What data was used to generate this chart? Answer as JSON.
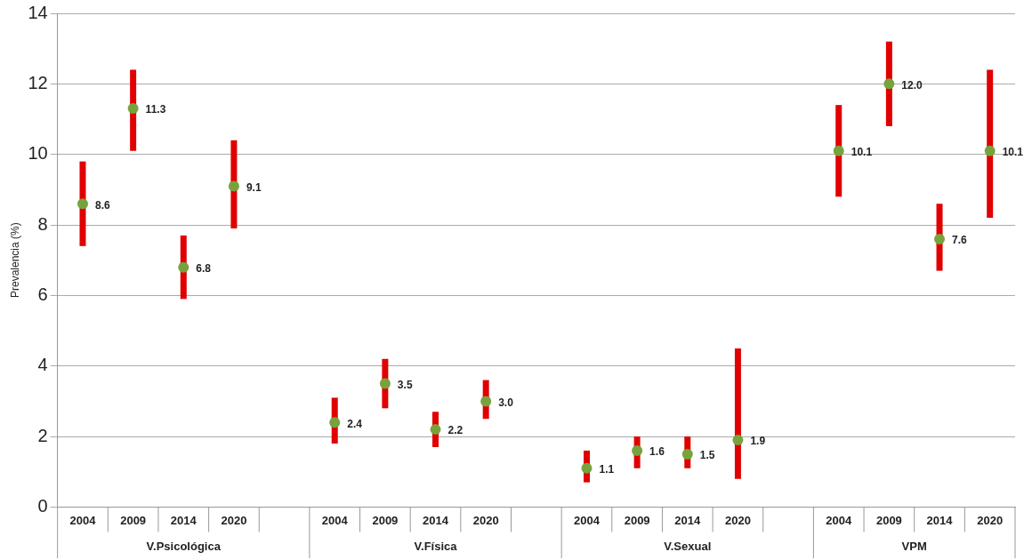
{
  "chart_data": {
    "type": "scatter",
    "ylabel": "Prevalencia (%)",
    "categories": [
      "2004",
      "2009",
      "2014",
      "2020",
      null,
      "2004",
      "2009",
      "2014",
      "2020",
      null,
      "2004",
      "2009",
      "2014",
      "2020",
      null,
      "2004",
      "2009",
      "2014",
      "2020"
    ],
    "values": [
      8.6,
      11.3,
      6.8,
      9.1,
      null,
      2.4,
      3.5,
      2.2,
      3.0,
      null,
      1.1,
      1.6,
      1.5,
      1.9,
      null,
      10.1,
      12.0,
      7.6,
      10.1
    ],
    "errors": [
      [
        7.4,
        9.8
      ],
      [
        10.1,
        12.4
      ],
      [
        5.9,
        7.7
      ],
      [
        7.9,
        10.4
      ],
      null,
      [
        1.8,
        3.1
      ],
      [
        2.8,
        4.2
      ],
      [
        1.7,
        2.7
      ],
      [
        2.5,
        3.6
      ],
      null,
      [
        0.7,
        1.6
      ],
      [
        1.1,
        2.0
      ],
      [
        1.1,
        2.0
      ],
      [
        0.8,
        4.5
      ],
      null,
      [
        8.8,
        11.4
      ],
      [
        10.8,
        13.2
      ],
      [
        6.7,
        8.6
      ],
      [
        8.2,
        12.4
      ]
    ],
    "color": "#77a33c",
    "marker": "circle",
    "value_labels": [
      "8.6",
      "11.3",
      "6.8",
      "9.1",
      null,
      "2.4",
      "3.5",
      "2.2",
      "3.0",
      null,
      "1.1",
      "1.6",
      "1.5",
      "1.9",
      null,
      "10.1",
      "12.0",
      "7.6",
      "10.1"
    ],
    "ylim": [
      0,
      14
    ],
    "yticks": [
      0,
      2,
      4,
      6,
      8,
      10,
      12,
      14
    ],
    "grid": "y",
    "legend": false,
    "annotations": [
      "V.Psicológica",
      "V.Física",
      "V.Sexual",
      "VPM"
    ]
  }
}
